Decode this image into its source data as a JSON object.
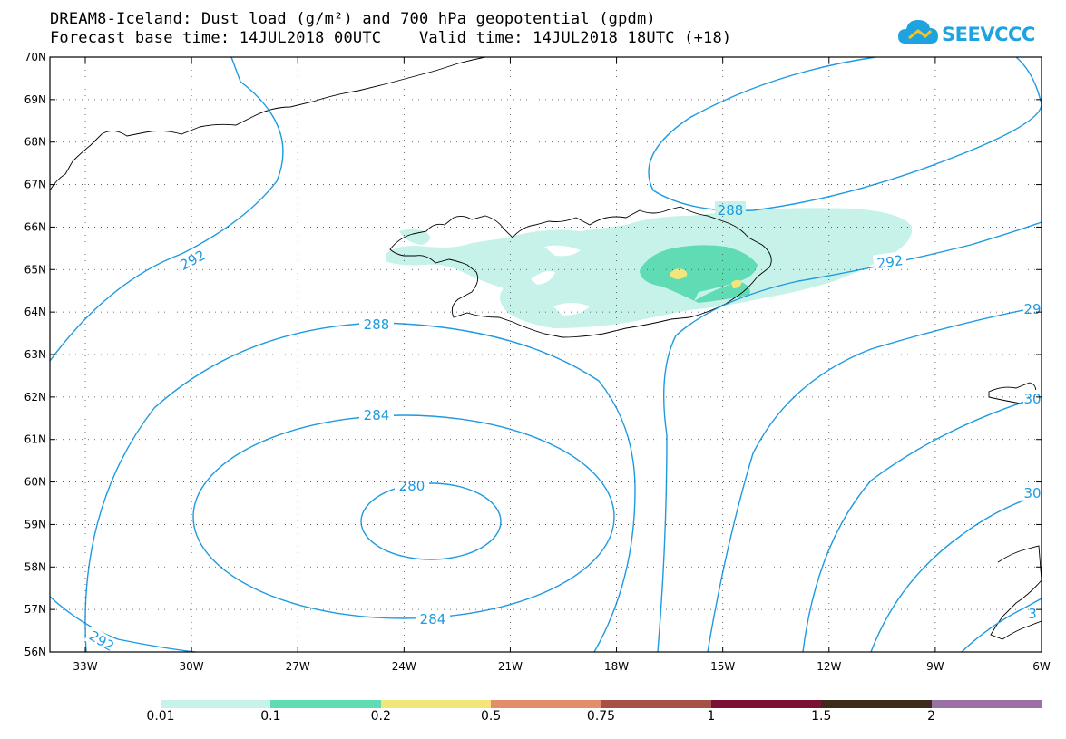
{
  "title_line1": "DREAM8-Iceland: Dust load (g/m²) and 700 hPa geopotential (gpdm)",
  "title_line2": "Forecast base time: 14JUL2018 00UTC    Valid time: 14JUL2018 18UTC (+18)",
  "logo_text": "SEEVCCC",
  "lat_labels": [
    "70N",
    "69N",
    "68N",
    "67N",
    "66N",
    "65N",
    "64N",
    "63N",
    "62N",
    "61N",
    "60N",
    "59N",
    "58N",
    "57N",
    "56N"
  ],
  "lon_labels": [
    "33W",
    "30W",
    "27W",
    "24W",
    "21W",
    "18W",
    "15W",
    "12W",
    "9W",
    "6W"
  ],
  "contour_labels": {
    "c292_west": "292",
    "c292_sw": "292",
    "c288_top": "288",
    "c288_left": "288",
    "c292_east": "292",
    "c284_upper": "284",
    "c284_lower": "284",
    "c280": "280",
    "c29_right": "29",
    "c30_a": "30",
    "c30_b": "30",
    "c3_c": "3"
  },
  "colorbar": {
    "labels": [
      "0.01",
      "0.1",
      "0.2",
      "0.5",
      "0.75",
      "1",
      "1.5",
      "2"
    ],
    "colors": [
      "#c6f2ea",
      "#5fdcb4",
      "#f2e67a",
      "#e58c6a",
      "#a55146",
      "#7a1035",
      "#3d2a18",
      "#9a70a6"
    ]
  },
  "colors": {
    "contour": "#1e9ae0",
    "dust_low": "#c6f2ea",
    "dust_mid": "#5fdcb4",
    "dust_high": "#f2e67a"
  }
}
